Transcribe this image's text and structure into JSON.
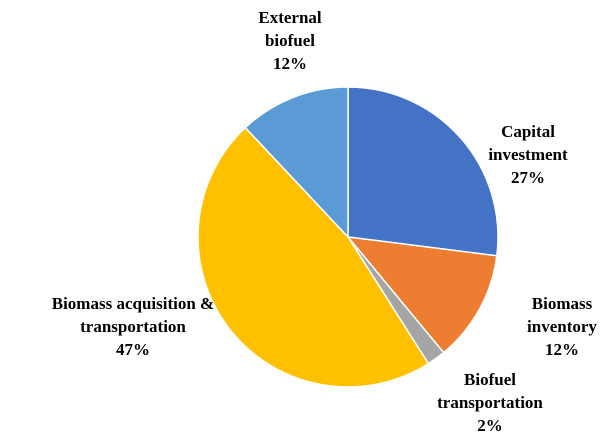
{
  "chart_data": {
    "type": "pie",
    "categories": [
      "Capital investment",
      "Biomass inventory",
      "Biofuel transportation",
      "Biomass acquisition & transportation",
      "External biofuel"
    ],
    "values": [
      27,
      12,
      2,
      47,
      12
    ],
    "value_labels": [
      "27%",
      "12%",
      "2%",
      "47%",
      "12%"
    ],
    "colors": [
      "#4472c4",
      "#ed7d31",
      "#a5a5a5",
      "#ffc000",
      "#5b9bd5"
    ]
  }
}
